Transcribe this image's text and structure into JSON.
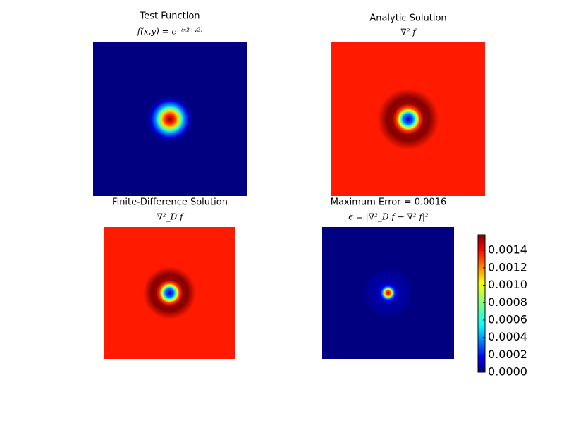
{
  "chart_data": [
    {
      "type": "image",
      "title": "Test Function",
      "subtitle": "f(x,y) = e⁻⁽ˣ²⁺ʸ²⁾"
    },
    {
      "type": "image",
      "title": "Analytic Solution",
      "subtitle": "∇² f"
    },
    {
      "type": "image",
      "title": "Finite-Difference Solution",
      "subtitle": "∇²_D f"
    },
    {
      "type": "image",
      "title": "Maximum Error = 0.0016",
      "subtitle": "ϵ = |∇²_D f − ∇² f|²",
      "colorbar": {
        "colormap": "jet",
        "ylim": [
          0,
          0.00158
        ],
        "yticks": [
          {
            "value": 0,
            "label": "0.0000"
          },
          {
            "value": 0.0002,
            "label": "0.0002"
          },
          {
            "value": 0.0004,
            "label": "0.0004"
          },
          {
            "value": 0.0006,
            "label": "0.0006"
          },
          {
            "value": 0.0008,
            "label": "0.0008"
          },
          {
            "value": 0.001,
            "label": "0.0010"
          },
          {
            "value": 0.0012,
            "label": "0.0012"
          },
          {
            "value": 0.0014,
            "label": "0.0014"
          }
        ]
      }
    }
  ]
}
